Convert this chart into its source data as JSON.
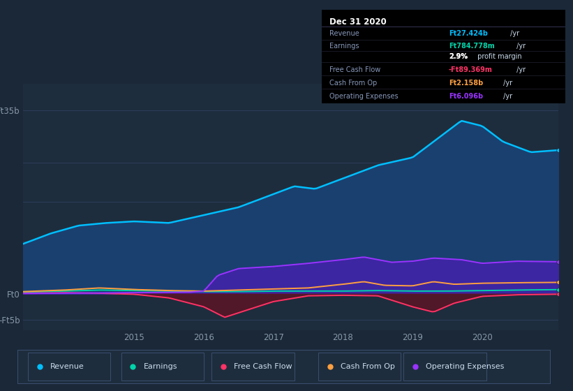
{
  "bg_color": "#1b2838",
  "plot_bg_color": "#1e2d3d",
  "series_colors": {
    "revenue": "#00bfff",
    "revenue_fill": "#1a4070",
    "earnings": "#00d4aa",
    "fcf": "#ff3366",
    "fcf_fill": "#5a1525",
    "cash_from_op": "#ffa040",
    "op_exp": "#9933ff",
    "op_exp_fill": "#4422aa"
  },
  "ylim": [
    -7000000000.0,
    40000000000.0
  ],
  "xlim_start": 2013.4,
  "xlim_end": 2021.1,
  "ytick_positions": [
    -5000000000.0,
    0,
    35000000000.0
  ],
  "ytick_labels": [
    "-Ft5b",
    "Ft0",
    "Ft35b"
  ],
  "xtick_positions": [
    2015,
    2016,
    2017,
    2018,
    2019,
    2020
  ],
  "grid_lines": [
    -5000000000.0,
    0,
    10000000000.0,
    17500000000.0,
    25000000000.0,
    35000000000.0
  ],
  "info_box": {
    "title": "Dec 31 2020",
    "rows": [
      {
        "label": "Revenue",
        "val1": "Ft27.424b",
        "val1_color": "#00bfff",
        "suffix": " /yr"
      },
      {
        "label": "Earnings",
        "val1": "Ft784.778m",
        "val1_color": "#00d4aa",
        "suffix": " /yr"
      },
      {
        "label": "",
        "val1": "2.9%",
        "val1_color": "#ffffff",
        "suffix": " profit margin"
      },
      {
        "label": "Free Cash Flow",
        "val1": "-Ft89.369m",
        "val1_color": "#ff3366",
        "suffix": " /yr"
      },
      {
        "label": "Cash From Op",
        "val1": "Ft2.158b",
        "val1_color": "#ffa040",
        "suffix": " /yr"
      },
      {
        "label": "Operating Expenses",
        "val1": "Ft6.096b",
        "val1_color": "#9933ff",
        "suffix": " /yr"
      }
    ]
  },
  "legend_items": [
    {
      "label": "Revenue",
      "color": "#00bfff"
    },
    {
      "label": "Earnings",
      "color": "#00d4aa"
    },
    {
      "label": "Free Cash Flow",
      "color": "#ff3366"
    },
    {
      "label": "Cash From Op",
      "color": "#ffa040"
    },
    {
      "label": "Operating Expenses",
      "color": "#9933ff"
    }
  ]
}
